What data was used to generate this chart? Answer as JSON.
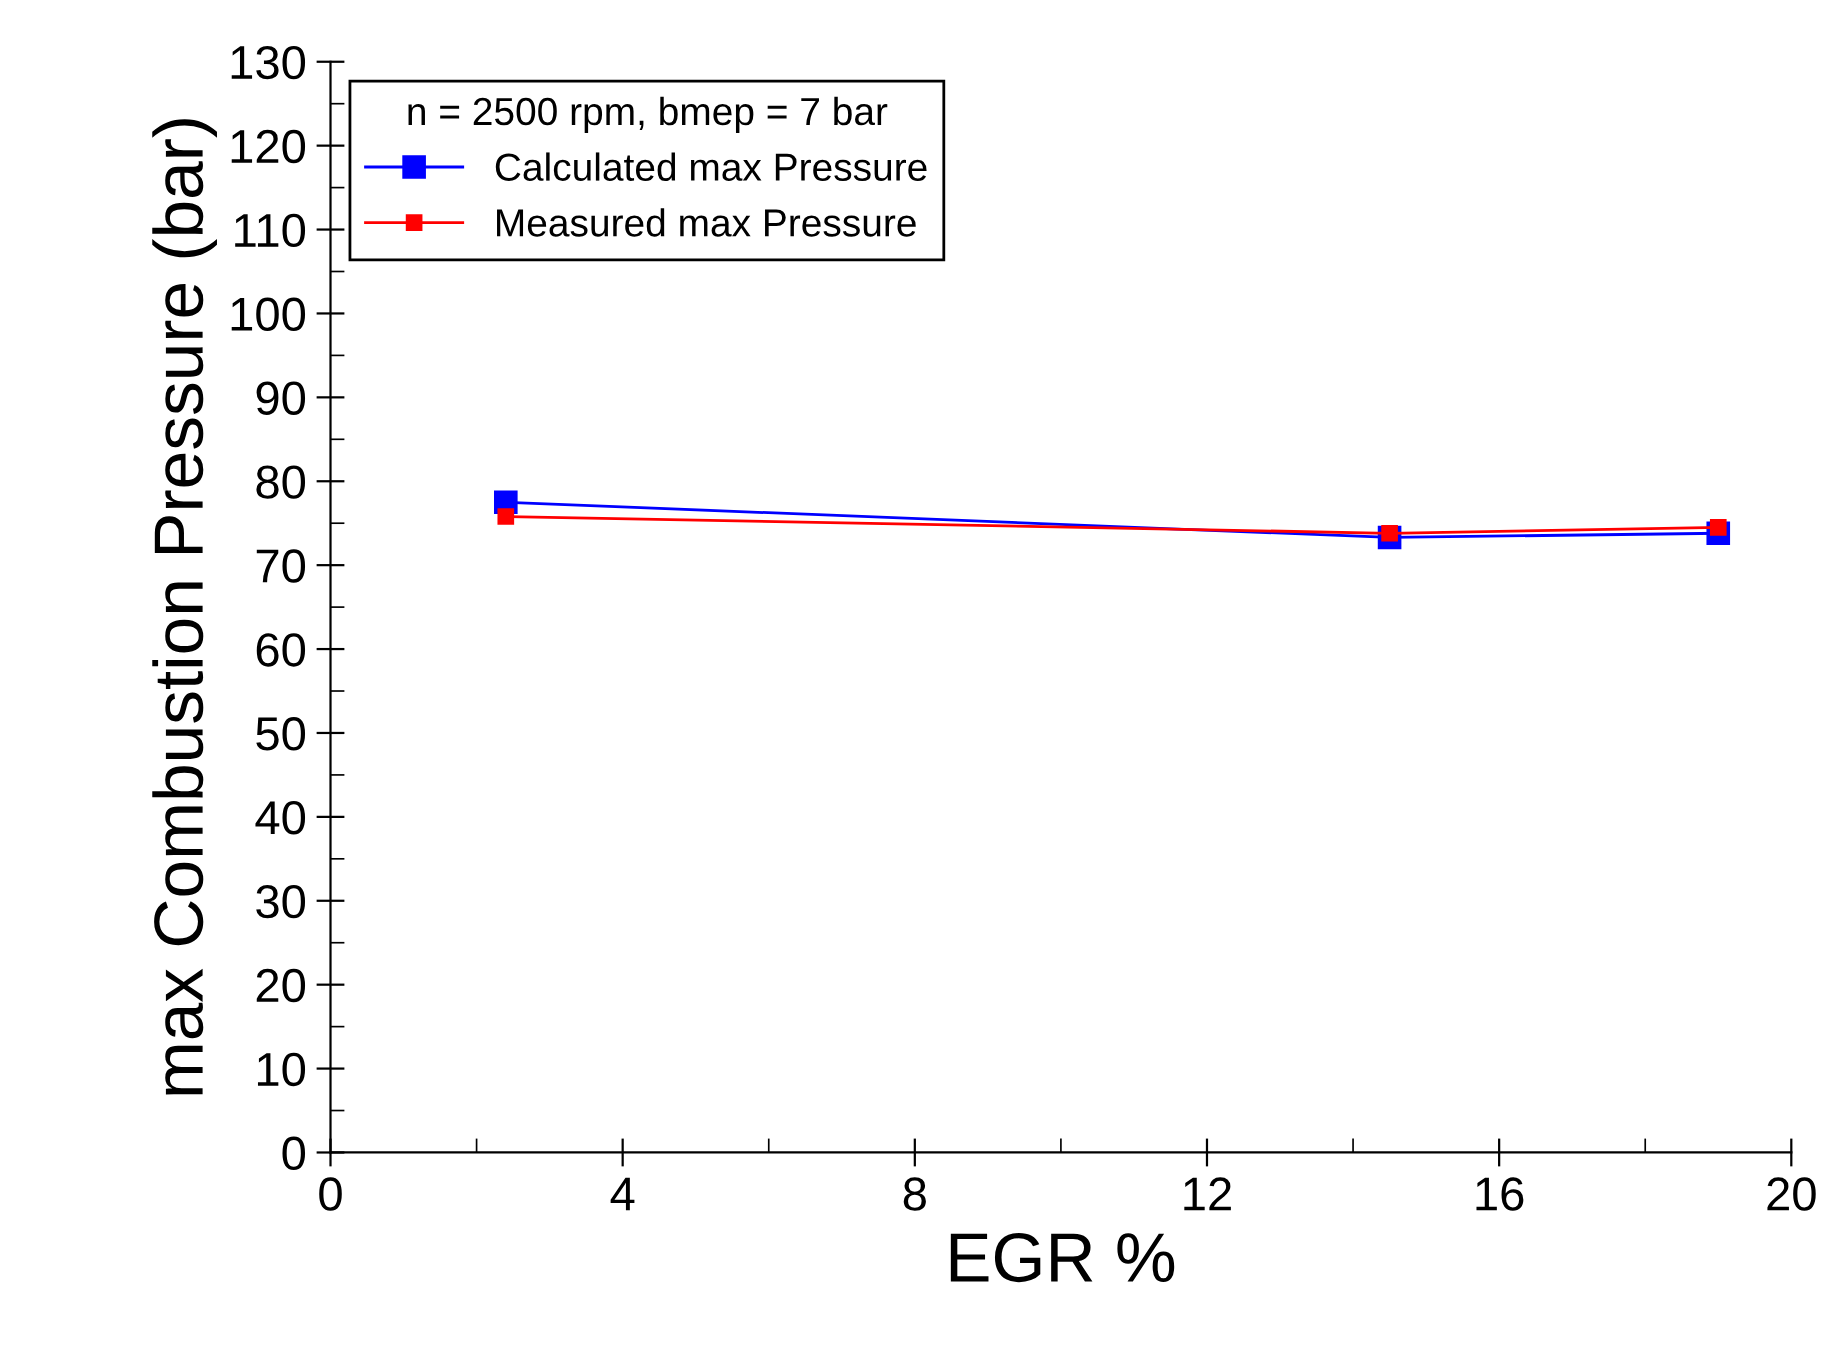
{
  "chart_data": {
    "type": "line",
    "xlabel": "EGR %",
    "ylabel": "max Combustion Pressure (bar)",
    "legend_title": "n = 2500 rpm, bmep = 7 bar",
    "legend": "top left",
    "marker": "square",
    "grid": false,
    "x": [
      2.4,
      14.5,
      19.0
    ],
    "series": [
      {
        "name": "Calculated max Pressure",
        "color": "#0000ff",
        "values": [
          77.5,
          73.3,
          73.8
        ]
      },
      {
        "name": "Measured max Pressure",
        "color": "#ff0000",
        "values": [
          75.8,
          73.8,
          74.5
        ]
      }
    ],
    "xlim": [
      0,
      20
    ],
    "xticks": [
      0,
      4,
      8,
      12,
      16,
      20
    ],
    "ylim": [
      0,
      130
    ],
    "yticks": [
      0,
      10,
      20,
      30,
      40,
      50,
      60,
      70,
      80,
      90,
      100,
      110,
      120,
      130
    ]
  }
}
